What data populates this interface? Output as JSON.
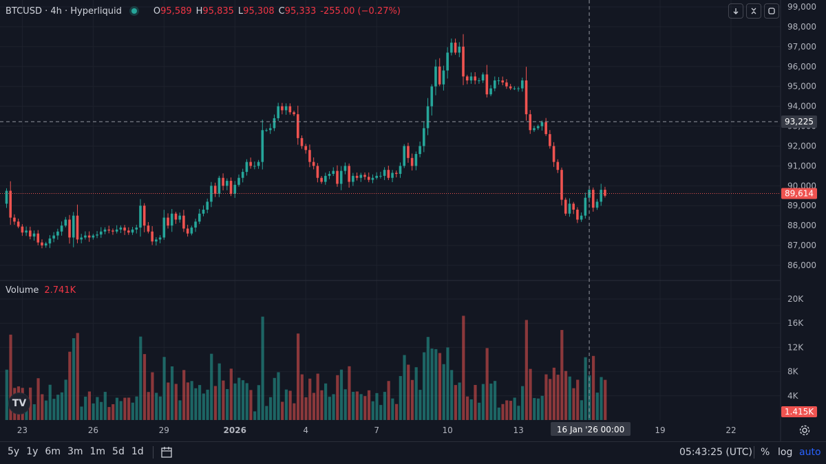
{
  "header": {
    "symbol": "BTCUSD · 4h · Hyperliquid",
    "open_label": "O",
    "open": "95,589",
    "high_label": "H",
    "high": "95,835",
    "low_label": "L",
    "low": "95,308",
    "close_label": "C",
    "close": "95,333",
    "change": "-255.00 (−0.27%)"
  },
  "toolbar": {
    "down_icon": "arrow-down-icon",
    "collapse_icon": "collapse-icon",
    "refresh_icon": "refresh-icon"
  },
  "volume_panel": {
    "label": "Volume",
    "value": "2.741K",
    "last_tag": "1.415K"
  },
  "crosshair": {
    "price_tag": "93,225",
    "time_tag": "16 Jan '26   00:00",
    "price": 93225
  },
  "last_price_tag": "89,614",
  "ranges": [
    "5y",
    "1y",
    "6m",
    "3m",
    "1m",
    "5d",
    "1d"
  ],
  "clock": "05:43:25 (UTC)",
  "scale_options": {
    "percent": "%",
    "log": "log",
    "auto": "auto"
  },
  "colors": {
    "up": "#26a69a",
    "down": "#ef5350",
    "bg": "#131722",
    "grid": "#1e222d",
    "accent": "#2962ff"
  },
  "chart_data": {
    "type": "candlestick",
    "timeframe": "4h",
    "price_axis": {
      "ticks": [
        86000,
        87000,
        88000,
        89000,
        90000,
        91000,
        92000,
        93000,
        94000,
        95000,
        96000,
        97000,
        98000,
        99000
      ],
      "tick_labels": [
        "86,000",
        "87,000",
        "88,000",
        "89,000",
        "90,000",
        "91,000",
        "92,000",
        "93,000",
        "94,000",
        "95,000",
        "96,000",
        "97,000",
        "98,000",
        "99,000"
      ],
      "range": [
        85500,
        99200
      ]
    },
    "volume_axis": {
      "ticks": [
        4000,
        8000,
        12000,
        16000,
        20000
      ],
      "tick_labels": [
        "4K",
        "8K",
        "12K",
        "16K",
        "20K"
      ],
      "range": [
        0,
        21500
      ]
    },
    "time_axis": {
      "ticks": [
        {
          "label": "23",
          "bar": 4
        },
        {
          "label": "26",
          "bar": 22
        },
        {
          "label": "29",
          "bar": 40
        },
        {
          "label": "2026",
          "bar": 58,
          "bold": true
        },
        {
          "label": "4",
          "bar": 76
        },
        {
          "label": "7",
          "bar": 94
        },
        {
          "label": "10",
          "bar": 112
        },
        {
          "label": "13",
          "bar": 130
        },
        {
          "label": "19",
          "bar": 166
        },
        {
          "label": "22",
          "bar": 184
        }
      ]
    },
    "last_price": 89614,
    "crosshair_bar": 148,
    "closes": [
      89750,
      88400,
      88200,
      87950,
      87650,
      87750,
      87450,
      87600,
      87150,
      87000,
      87100,
      87350,
      87500,
      87700,
      88000,
      88300,
      87400,
      88500,
      87300,
      87400,
      87500,
      87400,
      87500,
      87550,
      87700,
      87800,
      87750,
      87700,
      87800,
      87900,
      87750,
      87650,
      87800,
      87900,
      89000,
      88000,
      87700,
      87200,
      87300,
      87400,
      88400,
      88000,
      88600,
      88300,
      88500,
      87850,
      87600,
      87900,
      88200,
      88600,
      88800,
      89200,
      90000,
      89600,
      90400,
      90000,
      90250,
      89600,
      90050,
      90400,
      90700,
      91200,
      91000,
      91000,
      91200,
      92800,
      92800,
      92900,
      93400,
      94000,
      93800,
      94000,
      93700,
      93600,
      92400,
      92000,
      91800,
      91200,
      91000,
      90400,
      90200,
      90500,
      90600,
      90750,
      90100,
      90750,
      91000,
      90200,
      90500,
      90400,
      90550,
      90450,
      90300,
      90400,
      90500,
      90500,
      90800,
      90400,
      90650,
      90600,
      91000,
      92000,
      91400,
      91000,
      91600,
      92000,
      92900,
      94000,
      95000,
      96000,
      95100,
      95800,
      96700,
      97200,
      96700,
      97000,
      95500,
      95300,
      95500,
      95300,
      95300,
      95600,
      94600,
      94900,
      95300,
      95300,
      95200,
      95000,
      94900,
      94900,
      94900,
      95300,
      93600,
      92800,
      92900,
      93000,
      93200,
      92600,
      92000,
      91200,
      90800,
      89300,
      88600,
      89100,
      88800,
      88300,
      88500,
      89400,
      89800,
      88900,
      89200,
      89800,
      89500
    ]
  }
}
